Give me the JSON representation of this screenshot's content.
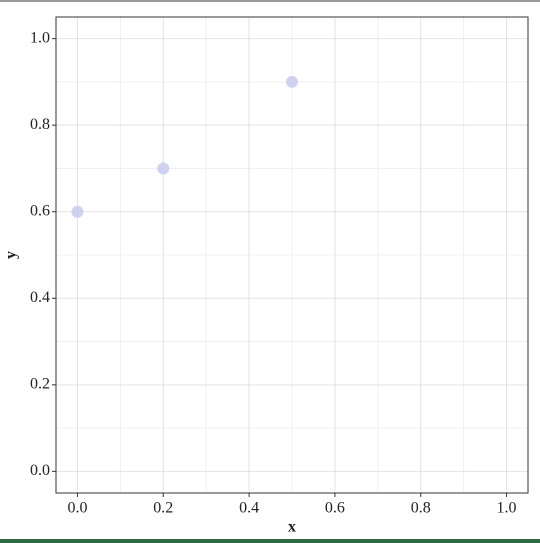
{
  "chart_data": {
    "type": "scatter",
    "x_label": "x",
    "y_label": "y",
    "x": [
      0.0,
      0.2,
      0.5
    ],
    "values": [
      0.6,
      0.7,
      0.9
    ],
    "color": "#c9c9ee",
    "xlim": [
      -0.05,
      1.05
    ],
    "ylim": [
      -0.05,
      1.05
    ],
    "xticks": [
      {
        "value": 0,
        "label": "0.0"
      },
      0.2,
      0.4,
      0.6,
      0.8,
      {
        "value": 1,
        "label": "1.0"
      }
    ],
    "yticks": [
      {
        "value": 0,
        "label": "0.0"
      },
      0.2,
      0.4,
      0.6,
      0.8,
      {
        "value": 1,
        "label": "1.0"
      }
    ],
    "xminorticks": [
      0.1,
      0.3,
      0.5,
      0.7,
      0.9
    ],
    "yminorticks": [
      0.1,
      0.3,
      0.5,
      0.7,
      0.9
    ],
    "grid": true
  }
}
